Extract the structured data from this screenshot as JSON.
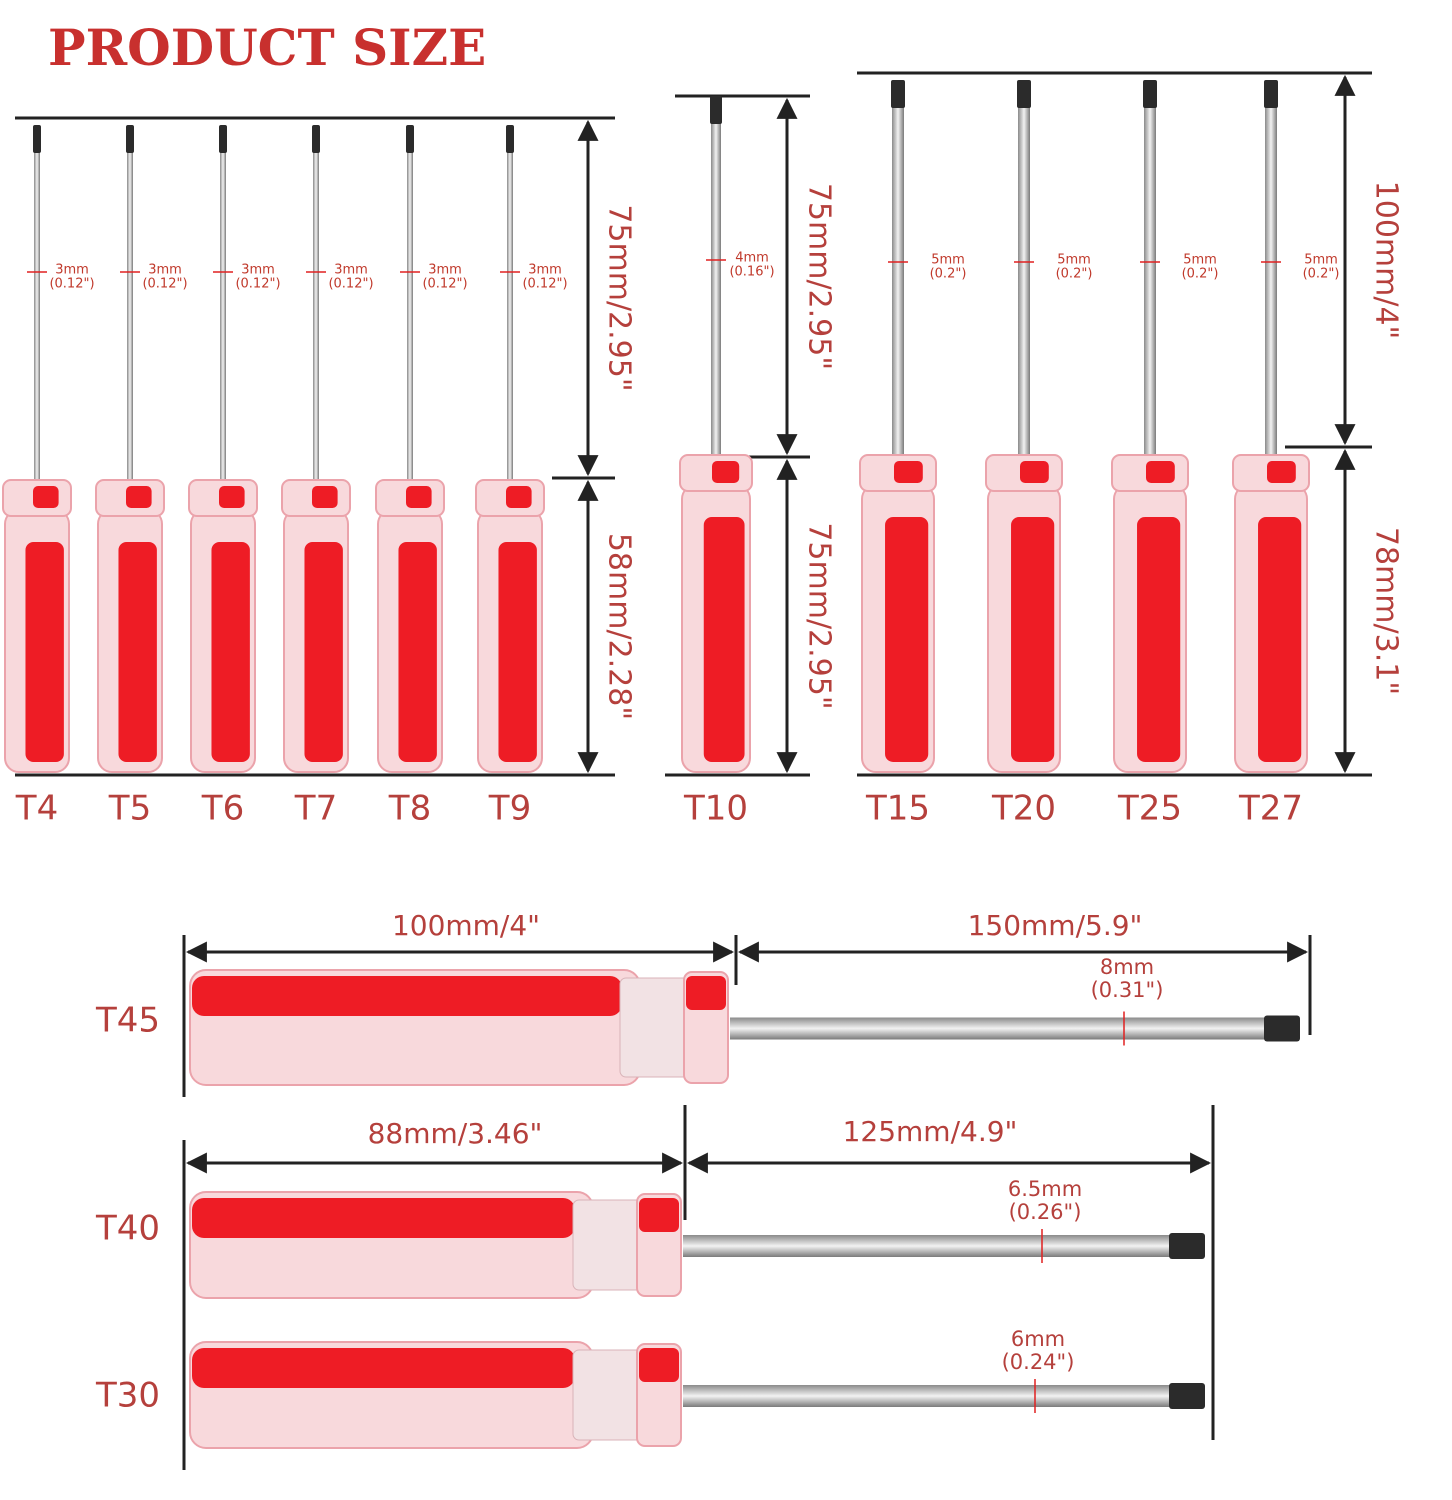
{
  "title": "PRODUCT SIZE",
  "groups": [
    {
      "tools": [
        {
          "label": "T4",
          "diameter": "3mm",
          "diameter_in": "(0.12\")"
        },
        {
          "label": "T5",
          "diameter": "3mm",
          "diameter_in": "(0.12\")"
        },
        {
          "label": "T6",
          "diameter": "3mm",
          "diameter_in": "(0.12\")"
        },
        {
          "label": "T7",
          "diameter": "3mm",
          "diameter_in": "(0.12\")"
        },
        {
          "label": "T8",
          "diameter": "3mm",
          "diameter_in": "(0.12\")"
        },
        {
          "label": "T9",
          "diameter": "3mm",
          "diameter_in": "(0.12\")"
        }
      ],
      "shaft_length": "75mm/2.95\"",
      "handle_length": "58mm/2.28\""
    },
    {
      "tools": [
        {
          "label": "T10",
          "diameter": "4mm",
          "diameter_in": "(0.16\")"
        }
      ],
      "shaft_length": "75mm/2.95\"",
      "handle_length": "75mm/2.95\""
    },
    {
      "tools": [
        {
          "label": "T15",
          "diameter": "5mm",
          "diameter_in": "(0.2\")"
        },
        {
          "label": "T20",
          "diameter": "5mm",
          "diameter_in": "(0.2\")"
        },
        {
          "label": "T25",
          "diameter": "5mm",
          "diameter_in": "(0.2\")"
        },
        {
          "label": "T27",
          "diameter": "5mm",
          "diameter_in": "(0.2\")"
        }
      ],
      "shaft_length": "100mm/4\"",
      "handle_length": "78mm/3.1\""
    }
  ],
  "long_tools": [
    {
      "label": "T45",
      "handle_length": "100mm/4\"",
      "shaft_length": "150mm/5.9\"",
      "diameter": "8mm",
      "diameter_in": "(0.31\")"
    },
    {
      "label": "T40",
      "handle_length": "88mm/3.46\"",
      "shaft_length": "125mm/4.9\"",
      "diameter": "6.5mm",
      "diameter_in": "(0.26\")"
    },
    {
      "label": "T30",
      "diameter": "6mm",
      "diameter_in": "(0.24\")"
    }
  ]
}
